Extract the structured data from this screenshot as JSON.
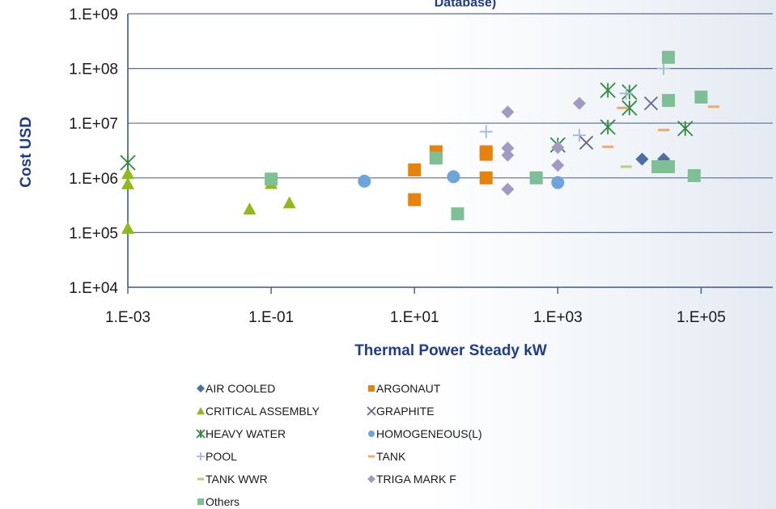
{
  "chart_data": {
    "type": "scatter",
    "title": "Database)",
    "xlabel": "Thermal Power Steady kW",
    "ylabel": "Cost  USD",
    "x_scale": "log",
    "y_scale": "log",
    "xlim": [
      0.001,
      1000000
    ],
    "ylim": [
      10000,
      1000000000
    ],
    "x_ticks": [
      0.001,
      0.1,
      10,
      1000,
      100000
    ],
    "x_tick_labels": [
      "1.E-03",
      "1.E-01",
      "1.E+01",
      "1.E+03",
      "1.E+05"
    ],
    "y_ticks": [
      10000,
      100000,
      1000000,
      10000000,
      100000000,
      1000000000
    ],
    "y_tick_labels": [
      "1.E+04",
      "1.E+05",
      "1.E+06",
      "1.E+07",
      "1.E+08",
      "1.E+09"
    ],
    "grid": "horizontal",
    "legend_position": "bottom",
    "series": [
      {
        "name": "AIR COOLED",
        "marker": "diamond",
        "color": "#4a6fa5",
        "points": [
          [
            15000,
            2200000
          ],
          [
            30000,
            2200000
          ]
        ]
      },
      {
        "name": "ARGONAUT",
        "marker": "square",
        "color": "#e8820c",
        "points": [
          [
            10,
            1400000
          ],
          [
            10,
            400000
          ],
          [
            20,
            3000000
          ],
          [
            100,
            3000000
          ],
          [
            100,
            2700000
          ],
          [
            100,
            1000000
          ]
        ]
      },
      {
        "name": "CRITICAL ASSEMBLY",
        "marker": "triangle",
        "color": "#8fba1a",
        "points": [
          [
            0.001,
            1200000
          ],
          [
            0.001,
            780000
          ],
          [
            0.001,
            120000
          ],
          [
            0.05,
            270000
          ],
          [
            0.1,
            790000
          ],
          [
            0.18,
            350000
          ]
        ]
      },
      {
        "name": "GRAPHITE",
        "marker": "x",
        "color": "#6b6488",
        "points": [
          [
            2500,
            4400000
          ],
          [
            20000,
            23000000
          ]
        ]
      },
      {
        "name": "HEAVY WATER",
        "marker": "asterisk",
        "color": "#2e8b3e",
        "points": [
          [
            0.001,
            1900000
          ],
          [
            1000,
            4000000
          ],
          [
            5000,
            40000000
          ],
          [
            5000,
            8500000
          ],
          [
            10000,
            37000000
          ],
          [
            10000,
            19000000
          ],
          [
            60000,
            8000000
          ]
        ]
      },
      {
        "name": "HOMOGENEOUS(L)",
        "marker": "circle",
        "color": "#6ea4dc",
        "points": [
          [
            2,
            870000
          ],
          [
            35,
            1050000
          ],
          [
            1000,
            820000
          ]
        ]
      },
      {
        "name": "POOL",
        "marker": "plus",
        "color": "#a4b8d4",
        "points": [
          [
            100,
            7000000
          ],
          [
            2000,
            6000000
          ],
          [
            9000,
            35000000
          ],
          [
            30000,
            100000000
          ]
        ]
      },
      {
        "name": "TANK",
        "marker": "dash",
        "color": "#f4a870",
        "points": [
          [
            5000,
            3700000
          ],
          [
            8000,
            19000000
          ],
          [
            30000,
            7500000
          ],
          [
            150000,
            20000000
          ]
        ]
      },
      {
        "name": "TANK WWR",
        "marker": "dash",
        "color": "#b4d277",
        "points": [
          [
            9000,
            1600000
          ]
        ]
      },
      {
        "name": "TRIGA MARK F",
        "marker": "diamond",
        "color": "#a39ac4",
        "points": [
          [
            200,
            16000000
          ],
          [
            200,
            3500000
          ],
          [
            200,
            2600000
          ],
          [
            200,
            620000
          ],
          [
            1000,
            3600000
          ],
          [
            1000,
            1700000
          ],
          [
            2000,
            23000000
          ]
        ]
      },
      {
        "name": "Others",
        "marker": "square",
        "color": "#7fbf95",
        "points": [
          [
            0.1,
            950000
          ],
          [
            20,
            2300000
          ],
          [
            40,
            220000
          ],
          [
            500,
            1000000
          ],
          [
            25000,
            1600000
          ],
          [
            35000,
            160000000
          ],
          [
            35000,
            26000000
          ],
          [
            35000,
            1600000
          ],
          [
            80000,
            1100000
          ],
          [
            100000,
            30000000
          ]
        ]
      }
    ]
  }
}
